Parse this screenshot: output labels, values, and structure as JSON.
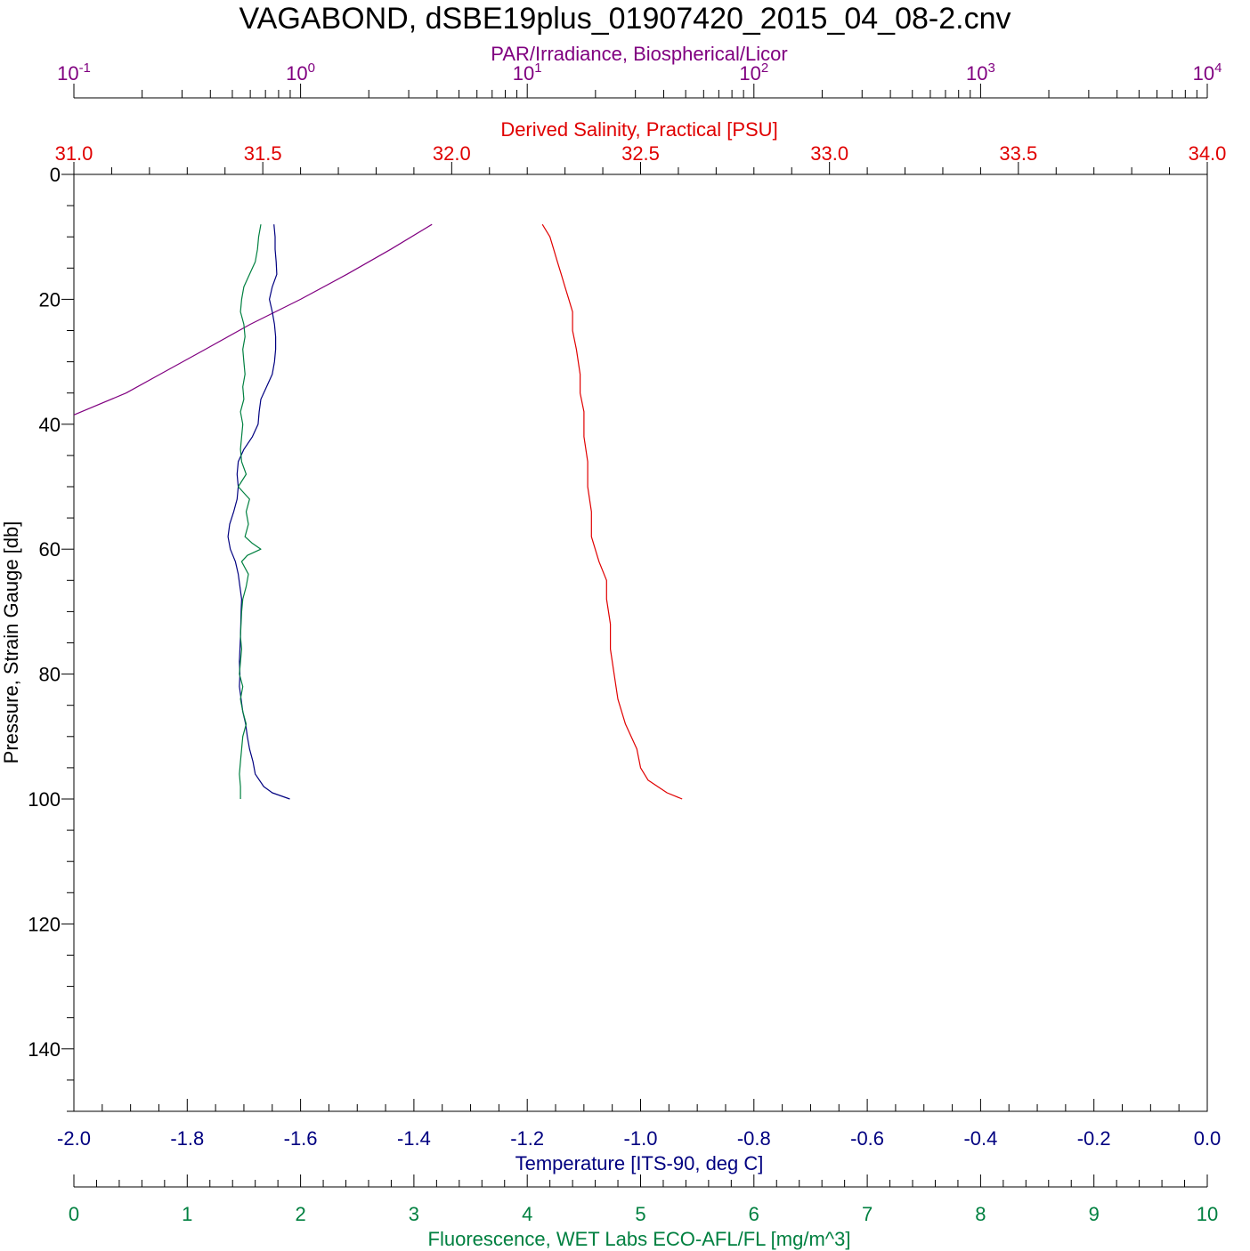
{
  "title": "VAGABOND, dSBE19plus_01907420_2015_04_08-2.cnv",
  "colors": {
    "par": "#800080",
    "salinity": "#e00000",
    "temperature": "#000080",
    "fluorescence": "#008040",
    "pressure": "#000000"
  },
  "chart_data": {
    "type": "line",
    "title": "VAGABOND, dSBE19plus_01907420_2015_04_08-2.cnv",
    "grid": false,
    "axes": {
      "pressure": {
        "label": "Pressure, Strain Gauge [db]",
        "range": [
          0,
          150
        ],
        "ticks": [
          "0",
          "20",
          "40",
          "60",
          "80",
          "100",
          "120",
          "140"
        ],
        "orientation": "left, increasing downward"
      },
      "par": {
        "label": "PAR/Irradiance, Biospherical/Licor",
        "scale": "log",
        "range": [
          0.1,
          10000
        ],
        "ticks": [
          {
            "base": "10",
            "exp": "-1"
          },
          {
            "base": "10",
            "exp": "0"
          },
          {
            "base": "10",
            "exp": "1"
          },
          {
            "base": "10",
            "exp": "2"
          },
          {
            "base": "10",
            "exp": "3"
          },
          {
            "base": "10",
            "exp": "4"
          }
        ],
        "position": "top (outer)"
      },
      "salinity": {
        "label": "Derived Salinity, Practical [PSU]",
        "range": [
          31.0,
          34.0
        ],
        "ticks": [
          "31.0",
          "31.5",
          "32.0",
          "32.5",
          "33.0",
          "33.5",
          "34.0"
        ],
        "position": "top (inner)"
      },
      "temperature": {
        "label": "Temperature [ITS-90, deg C]",
        "range": [
          -2.0,
          0.0
        ],
        "ticks": [
          "-2.0",
          "-1.8",
          "-1.6",
          "-1.4",
          "-1.2",
          "-1.0",
          "-0.8",
          "-0.6",
          "-0.4",
          "-0.2",
          "0.0"
        ],
        "position": "bottom (inner)"
      },
      "fluorescence": {
        "label": "Fluorescence, WET Labs ECO-AFL/FL [mg/m^3]",
        "range": [
          0,
          10
        ],
        "ticks": [
          "0",
          "1",
          "2",
          "3",
          "4",
          "5",
          "6",
          "7",
          "8",
          "9",
          "10"
        ],
        "position": "bottom (outer)"
      }
    },
    "series": [
      {
        "axis": "par",
        "color": "#800080",
        "points": [
          [
            8,
            3.8
          ],
          [
            12,
            2.5
          ],
          [
            16,
            1.6
          ],
          [
            20,
            1.0
          ],
          [
            24,
            0.6
          ],
          [
            28,
            0.38
          ],
          [
            32,
            0.24
          ],
          [
            35,
            0.17
          ],
          [
            38.5,
            0.1
          ]
        ]
      },
      {
        "axis": "salinity",
        "color": "#e00000",
        "points": [
          [
            8,
            32.24
          ],
          [
            10,
            32.26
          ],
          [
            12,
            32.27
          ],
          [
            14,
            32.28
          ],
          [
            16,
            32.29
          ],
          [
            18,
            32.3
          ],
          [
            20,
            32.31
          ],
          [
            22,
            32.32
          ],
          [
            25,
            32.32
          ],
          [
            28,
            32.33
          ],
          [
            32,
            32.34
          ],
          [
            35,
            32.34
          ],
          [
            38,
            32.35
          ],
          [
            42,
            32.35
          ],
          [
            46,
            32.36
          ],
          [
            50,
            32.36
          ],
          [
            54,
            32.37
          ],
          [
            58,
            32.37
          ],
          [
            62,
            32.39
          ],
          [
            65,
            32.41
          ],
          [
            68,
            32.41
          ],
          [
            72,
            32.42
          ],
          [
            76,
            32.42
          ],
          [
            80,
            32.43
          ],
          [
            84,
            32.44
          ],
          [
            88,
            32.46
          ],
          [
            92,
            32.49
          ],
          [
            95,
            32.5
          ],
          [
            97,
            32.52
          ],
          [
            99,
            32.57
          ],
          [
            100,
            32.61
          ]
        ]
      },
      {
        "axis": "temperature",
        "color": "#000080",
        "points": [
          [
            8,
            -1.647
          ],
          [
            10,
            -1.645
          ],
          [
            12,
            -1.645
          ],
          [
            14,
            -1.643
          ],
          [
            16,
            -1.642
          ],
          [
            18,
            -1.65
          ],
          [
            20,
            -1.655
          ],
          [
            22,
            -1.65
          ],
          [
            24,
            -1.646
          ],
          [
            26,
            -1.644
          ],
          [
            28,
            -1.644
          ],
          [
            30,
            -1.646
          ],
          [
            32,
            -1.65
          ],
          [
            34,
            -1.66
          ],
          [
            36,
            -1.67
          ],
          [
            38,
            -1.673
          ],
          [
            40,
            -1.675
          ],
          [
            42,
            -1.685
          ],
          [
            44,
            -1.7
          ],
          [
            46,
            -1.71
          ],
          [
            48,
            -1.712
          ],
          [
            50,
            -1.71
          ],
          [
            52,
            -1.712
          ],
          [
            54,
            -1.718
          ],
          [
            56,
            -1.725
          ],
          [
            58,
            -1.728
          ],
          [
            60,
            -1.724
          ],
          [
            62,
            -1.715
          ],
          [
            64,
            -1.71
          ],
          [
            66,
            -1.707
          ],
          [
            68,
            -1.704
          ],
          [
            70,
            -1.705
          ],
          [
            74,
            -1.706
          ],
          [
            78,
            -1.708
          ],
          [
            80,
            -1.707
          ],
          [
            82,
            -1.708
          ],
          [
            84,
            -1.705
          ],
          [
            86,
            -1.702
          ],
          [
            88,
            -1.697
          ],
          [
            90,
            -1.694
          ],
          [
            92,
            -1.69
          ],
          [
            94,
            -1.684
          ],
          [
            96,
            -1.68
          ],
          [
            98,
            -1.665
          ],
          [
            99,
            -1.65
          ],
          [
            100,
            -1.619
          ]
        ]
      },
      {
        "axis": "fluorescence",
        "color": "#008040",
        "points": [
          [
            8,
            1.65
          ],
          [
            10,
            1.63
          ],
          [
            12,
            1.62
          ],
          [
            14,
            1.6
          ],
          [
            16,
            1.55
          ],
          [
            18,
            1.5
          ],
          [
            20,
            1.48
          ],
          [
            22,
            1.47
          ],
          [
            24,
            1.5
          ],
          [
            26,
            1.51
          ],
          [
            28,
            1.49
          ],
          [
            30,
            1.5
          ],
          [
            32,
            1.51
          ],
          [
            34,
            1.49
          ],
          [
            36,
            1.5
          ],
          [
            38,
            1.47
          ],
          [
            40,
            1.49
          ],
          [
            42,
            1.48
          ],
          [
            44,
            1.47
          ],
          [
            46,
            1.48
          ],
          [
            48,
            1.52
          ],
          [
            50,
            1.45
          ],
          [
            52,
            1.55
          ],
          [
            54,
            1.52
          ],
          [
            56,
            1.54
          ],
          [
            58,
            1.51
          ],
          [
            59,
            1.57
          ],
          [
            60,
            1.65
          ],
          [
            61,
            1.53
          ],
          [
            62,
            1.48
          ],
          [
            64,
            1.54
          ],
          [
            66,
            1.52
          ],
          [
            68,
            1.49
          ],
          [
            70,
            1.48
          ],
          [
            74,
            1.47
          ],
          [
            76,
            1.48
          ],
          [
            78,
            1.47
          ],
          [
            80,
            1.46
          ],
          [
            82,
            1.49
          ],
          [
            84,
            1.47
          ],
          [
            86,
            1.49
          ],
          [
            88,
            1.52
          ],
          [
            90,
            1.49
          ],
          [
            92,
            1.48
          ],
          [
            94,
            1.47
          ],
          [
            96,
            1.46
          ],
          [
            98,
            1.47
          ],
          [
            100,
            1.47
          ]
        ]
      }
    ]
  }
}
